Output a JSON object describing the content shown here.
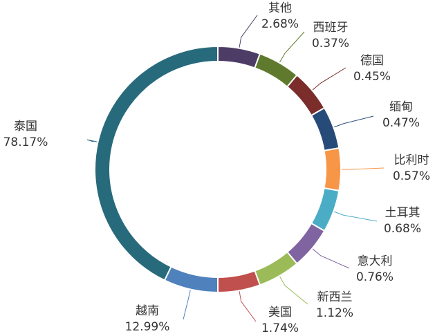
{
  "chart_data": {
    "type": "donut",
    "categories": [
      "其他",
      "西班牙",
      "德国",
      "缅甸",
      "比利时",
      "土耳其",
      "意大利",
      "新西兰",
      "美国",
      "越南",
      "泰国"
    ],
    "values": [
      2.68,
      0.37,
      0.45,
      0.47,
      0.57,
      0.68,
      0.76,
      1.12,
      1.74,
      12.99,
      78.17
    ],
    "value_labels": [
      "2.68%",
      "0.37%",
      "0.45%",
      "0.47%",
      "0.57%",
      "0.68%",
      "0.76%",
      "1.12%",
      "1.74%",
      "12.99%",
      "78.17%"
    ],
    "colors": [
      "#4d3c66",
      "#5f7a2c",
      "#7a2d2b",
      "#274b78",
      "#f79646",
      "#4bacc6",
      "#8064a2",
      "#9bbb59",
      "#c0504d",
      "#4f81bd",
      "#276a7c"
    ],
    "min_angle": 20
  }
}
